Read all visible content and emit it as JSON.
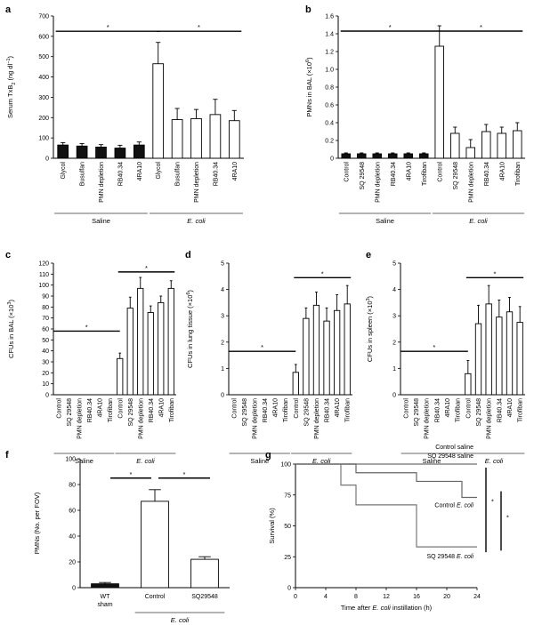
{
  "chart_data": [
    {
      "panel": "a",
      "type": "bar",
      "ylabel": "Serum TxB",
      "ylabel_sub": "2",
      "ylabel_unit": " (ng dl",
      "ylabel_sup": "−1",
      "ylabel_close": ")",
      "ylim": [
        0,
        700
      ],
      "yticks": [
        0,
        100,
        200,
        300,
        400,
        500,
        600,
        700
      ],
      "categories": [
        "Glycol",
        "Busulfan",
        "PMN depletion",
        "RB40.34",
        "4RA10",
        "Glycol",
        "Busulfan",
        "PMN depletion",
        "RB40.34",
        "4RA10"
      ],
      "values": [
        65,
        60,
        55,
        50,
        65,
        465,
        190,
        195,
        215,
        185
      ],
      "errors": [
        12,
        12,
        12,
        14,
        15,
        105,
        55,
        45,
        75,
        50
      ],
      "fills": [
        "#111111",
        "#111111",
        "#111111",
        "#111111",
        "#111111",
        "#ffffff",
        "#ffffff",
        "#ffffff",
        "#ffffff",
        "#ffffff"
      ],
      "groups": [
        {
          "label": "Saline",
          "italic": false
        },
        {
          "label": "E. coli",
          "italic": true
        }
      ],
      "sig": [
        {
          "text": "*"
        },
        {
          "text": "*"
        }
      ]
    },
    {
      "panel": "b",
      "type": "bar",
      "ylabel": "PMNs in BAL (×10",
      "ylabel_sup": "6",
      "ylabel_close": ")",
      "ylim": [
        0,
        1.6
      ],
      "yticks": [
        "0",
        "0.2",
        "0.4",
        "0.6",
        "0.8",
        "1.0",
        "1.2",
        "1.4",
        "1.6"
      ],
      "categories": [
        "Control",
        "SQ 29548",
        "PMN depletion",
        "RB40.34",
        "4RA10",
        "Tirofiban",
        "Control",
        "SQ 29548",
        "PMN depletion",
        "RB40.34",
        "4RA10",
        "Tirofiban"
      ],
      "values": [
        0.05,
        0.05,
        0.05,
        0.05,
        0.05,
        0.05,
        1.26,
        0.28,
        0.12,
        0.3,
        0.28,
        0.31
      ],
      "errors": [
        0.01,
        0.01,
        0.01,
        0.01,
        0.01,
        0.01,
        0.23,
        0.07,
        0.09,
        0.08,
        0.07,
        0.09
      ],
      "fills": [
        "#111111",
        "#111111",
        "#111111",
        "#111111",
        "#111111",
        "#111111",
        "#ffffff",
        "#ffffff",
        "#ffffff",
        "#ffffff",
        "#ffffff",
        "#ffffff"
      ],
      "groups": [
        {
          "label": "Saline",
          "italic": false
        },
        {
          "label": "E. coli",
          "italic": true
        }
      ],
      "sig": [
        {
          "text": "*"
        },
        {
          "text": "*"
        }
      ]
    },
    {
      "panel": "c",
      "type": "bar",
      "ylabel": "CFUs in BAL (×10",
      "ylabel_sup": "3",
      "ylabel_close": ")",
      "ylim": [
        0,
        120
      ],
      "yticks": [
        0,
        10,
        20,
        30,
        40,
        50,
        60,
        70,
        80,
        90,
        100,
        110,
        120
      ],
      "categories": [
        "Control",
        "SQ 29548",
        "PMN depletion",
        "RB40.34",
        "4RA10",
        "Tirofiban",
        "Control",
        "SQ 29548",
        "PMN depletion",
        "RB40.34",
        "4RA10",
        "Tirofiban"
      ],
      "values": [
        0,
        0,
        0,
        0,
        0,
        0,
        33,
        79,
        97,
        75,
        84,
        97
      ],
      "errors": [
        0,
        0,
        0,
        0,
        0,
        0,
        5,
        10,
        10,
        6,
        6,
        7
      ],
      "fills": [
        "#ffffff",
        "#ffffff",
        "#ffffff",
        "#ffffff",
        "#ffffff",
        "#ffffff",
        "#ffffff",
        "#ffffff",
        "#ffffff",
        "#ffffff",
        "#ffffff",
        "#ffffff"
      ],
      "groups": [
        {
          "label": "Saline",
          "italic": false
        },
        {
          "label": "E. coli",
          "italic": true
        }
      ],
      "sig": [
        {
          "text": "*"
        },
        {
          "text": "*"
        }
      ]
    },
    {
      "panel": "d",
      "type": "bar",
      "ylabel": "CFUs in lung tissue (×10",
      "ylabel_sup": "6",
      "ylabel_close": ")",
      "ylim": [
        0,
        5
      ],
      "yticks": [
        0,
        1,
        2,
        3,
        4,
        5
      ],
      "categories": [
        "Control",
        "SQ 29548",
        "PMN depletion",
        "RB40.34",
        "4RA10",
        "Tirofiban",
        "Control",
        "SQ 29548",
        "PMN depletion",
        "RB40.34",
        "4RA10",
        "Tirofiban"
      ],
      "values": [
        0,
        0,
        0,
        0,
        0,
        0,
        0.85,
        2.9,
        3.4,
        2.8,
        3.2,
        3.45
      ],
      "errors": [
        0,
        0,
        0,
        0,
        0,
        0,
        0.3,
        0.4,
        0.5,
        0.5,
        0.6,
        0.7
      ],
      "fills": [
        "#ffffff",
        "#ffffff",
        "#ffffff",
        "#ffffff",
        "#ffffff",
        "#ffffff",
        "#ffffff",
        "#ffffff",
        "#ffffff",
        "#ffffff",
        "#ffffff",
        "#ffffff"
      ],
      "groups": [
        {
          "label": "Saline",
          "italic": false
        },
        {
          "label": "E. coli",
          "italic": true
        }
      ],
      "sig": [
        {
          "text": "*"
        },
        {
          "text": "*"
        }
      ]
    },
    {
      "panel": "e",
      "type": "bar",
      "ylabel": "CFUs in spleen (×10",
      "ylabel_sup": "3",
      "ylabel_close": ")",
      "ylim": [
        0,
        5
      ],
      "yticks": [
        0,
        1,
        2,
        3,
        4,
        5
      ],
      "categories": [
        "Control",
        "SQ 29548",
        "PMN depletion",
        "RB40.34",
        "4RA10",
        "Tirofiban",
        "Control",
        "SQ 29548",
        "PMN depletion",
        "RB40.34",
        "4RA10",
        "Tirofiban"
      ],
      "values": [
        0,
        0,
        0,
        0,
        0,
        0,
        0.8,
        2.7,
        3.45,
        2.95,
        3.15,
        2.75
      ],
      "errors": [
        0,
        0,
        0,
        0,
        0,
        0,
        0.5,
        0.7,
        0.7,
        0.65,
        0.55,
        0.6
      ],
      "fills": [
        "#ffffff",
        "#ffffff",
        "#ffffff",
        "#ffffff",
        "#ffffff",
        "#ffffff",
        "#ffffff",
        "#ffffff",
        "#ffffff",
        "#ffffff",
        "#ffffff",
        "#ffffff"
      ],
      "groups": [
        {
          "label": "Saline",
          "italic": false
        },
        {
          "label": "E. coli",
          "italic": true
        }
      ],
      "sig": [
        {
          "text": "*"
        },
        {
          "text": "*"
        }
      ]
    },
    {
      "panel": "f",
      "type": "bar",
      "ylabel": "PMNs (No. per FOV)",
      "ylim": [
        0,
        100
      ],
      "yticks": [
        0,
        20,
        40,
        60,
        80,
        100
      ],
      "categories": [
        "WT\nsham",
        "Control",
        "SQ29548"
      ],
      "values": [
        3,
        67,
        22
      ],
      "errors": [
        1,
        9,
        2
      ],
      "fills": [
        "#111111",
        "#ffffff",
        "#ffffff"
      ],
      "groups": [
        {
          "label": "E. coli",
          "italic": true
        }
      ],
      "sig": [
        {
          "text": "*"
        },
        {
          "text": "*"
        }
      ]
    },
    {
      "panel": "g",
      "type": "line",
      "ylabel": "Survival (%)",
      "xlabel_pre": "Time after ",
      "xlabel_ital": "E. coli",
      "xlabel_post": " instillation (h)",
      "xlim": [
        0,
        24
      ],
      "ylim": [
        0,
        100
      ],
      "xticks": [
        0,
        4,
        8,
        12,
        16,
        20,
        24
      ],
      "yticks": [
        0,
        25,
        50,
        75,
        100
      ],
      "series": [
        {
          "name": "Control saline",
          "x": [
            0,
            24
          ],
          "y": [
            100,
            100
          ]
        },
        {
          "name": "SQ 29548 saline",
          "x": [
            0,
            24
          ],
          "y": [
            100,
            100
          ]
        },
        {
          "name": "Control E. coli",
          "x": [
            0,
            8,
            8,
            16,
            16,
            22,
            22,
            24
          ],
          "y": [
            100,
            100,
            93,
            93,
            86,
            86,
            73,
            73
          ]
        },
        {
          "name": "SQ 29548 E. coli",
          "x": [
            0,
            6,
            6,
            8,
            8,
            16,
            16,
            24
          ],
          "y": [
            100,
            100,
            83,
            83,
            67,
            67,
            33,
            33
          ]
        }
      ],
      "labels": {
        "control_saline": "Control saline",
        "sq_saline": "SQ 29548 saline",
        "control_ecoli_pre": "Control ",
        "sq_ecoli_pre": "SQ 29548 ",
        "ecoli": "E. coli"
      },
      "sig": [
        {
          "text": "*"
        },
        {
          "text": "*"
        }
      ]
    }
  ]
}
